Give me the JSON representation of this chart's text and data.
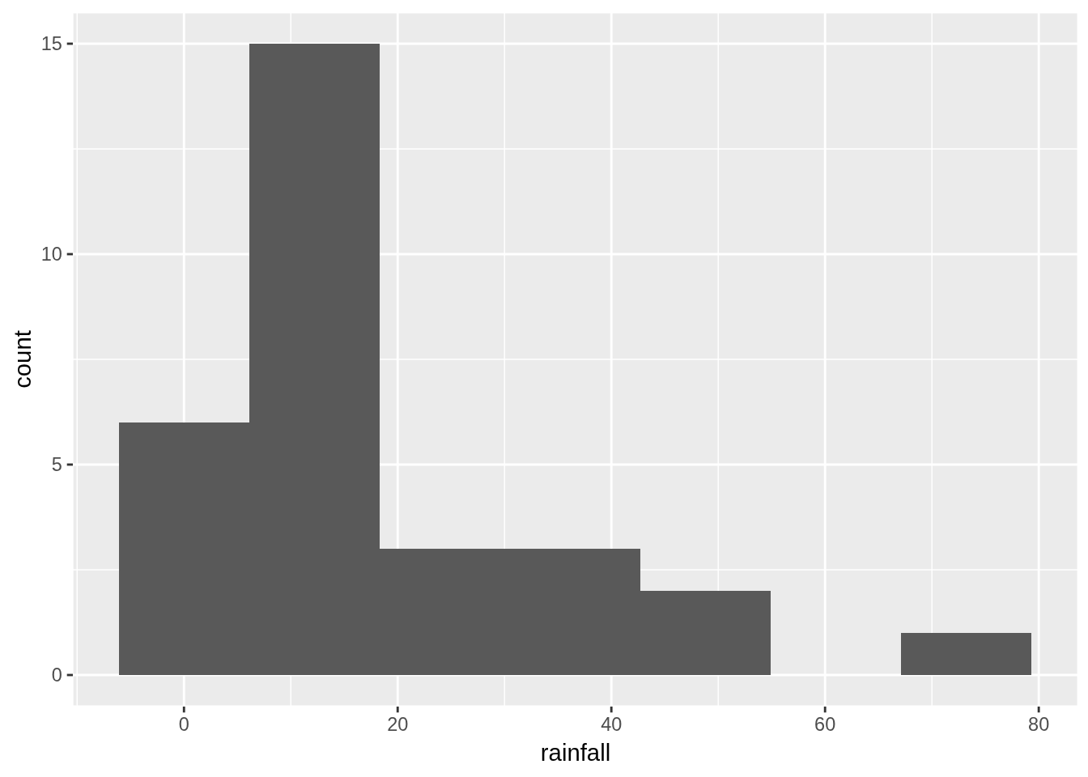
{
  "chart_data": {
    "type": "histogram",
    "xlabel": "rainfall",
    "ylabel": "count",
    "bins": [
      -6.1,
      6.1,
      18.3,
      30.5,
      42.7,
      54.9,
      67.1,
      79.3
    ],
    "values": [
      6,
      15,
      3,
      3,
      2,
      0,
      1
    ],
    "color": "#595959",
    "xlim": [
      -10.4,
      83.7
    ],
    "ylim": [
      -0.75,
      15.75
    ],
    "xticks": [
      {
        "value": -10,
        "label": null
      },
      0,
      {
        "value": 10,
        "label": null
      },
      20,
      {
        "value": 30,
        "label": null
      },
      40,
      {
        "value": 50,
        "label": null
      },
      60,
      {
        "value": 70,
        "label": null
      },
      80
    ],
    "yticks": [
      0,
      {
        "value": 2.5,
        "label": null
      },
      5,
      {
        "value": 7.5,
        "label": null
      },
      10,
      {
        "value": 12.5,
        "label": null
      },
      15
    ],
    "grid": true
  }
}
